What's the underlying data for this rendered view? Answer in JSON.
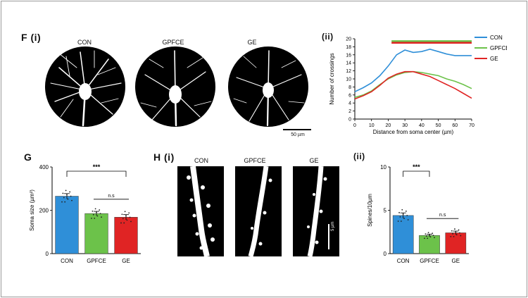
{
  "panels": {
    "F": {
      "label": "F",
      "sub_i": "(i)",
      "sub_ii": "(ii)"
    },
    "G": {
      "label": "G"
    },
    "H": {
      "label": "H",
      "sub_i": "(i)",
      "sub_ii": "(ii)"
    }
  },
  "neuron_labels": [
    "CON",
    "GPFCE",
    "GE"
  ],
  "scale_bar_f": "50 µm",
  "scale_bar_h": "5 µm",
  "colors": {
    "CON": "#2f8fd8",
    "GPFCE": "#6cc24a",
    "GE": "#e02424"
  },
  "chart_data": [
    {
      "id": "sholl",
      "type": "line",
      "xlabel": "Distance from soma center (µm)",
      "ylabel": "Number of crossings",
      "xlim": [
        0,
        70
      ],
      "ylim": [
        0,
        20
      ],
      "xticks": [
        0,
        10,
        20,
        30,
        40,
        50,
        60,
        70
      ],
      "yticks": [
        0,
        2,
        4,
        6,
        8,
        10,
        12,
        14,
        16,
        18,
        20
      ],
      "x": [
        0,
        5,
        10,
        15,
        20,
        25,
        30,
        35,
        40,
        45,
        50,
        55,
        60,
        65,
        70
      ],
      "series": [
        {
          "name": "CON",
          "color": "#2f8fd8",
          "values": [
            6.8,
            7.8,
            9.0,
            10.8,
            13.2,
            16.0,
            17.2,
            16.6,
            16.8,
            17.4,
            16.8,
            16.2,
            15.8,
            15.8,
            15.8
          ]
        },
        {
          "name": "GPFCE",
          "color": "#6cc24a",
          "values": [
            5.4,
            6.0,
            7.0,
            8.6,
            10.0,
            11.0,
            11.6,
            11.8,
            11.6,
            11.2,
            10.8,
            10.0,
            9.4,
            8.6,
            7.6
          ]
        },
        {
          "name": "GE",
          "color": "#e02424",
          "values": [
            5.0,
            5.8,
            6.8,
            8.4,
            10.2,
            11.2,
            11.8,
            11.8,
            11.2,
            10.6,
            9.6,
            8.6,
            7.6,
            6.4,
            5.2
          ]
        }
      ],
      "significance_bars": [
        {
          "color": "#6cc24a",
          "x": [
            22,
            70
          ],
          "y": 19.4
        },
        {
          "color": "#e02424",
          "x": [
            22,
            70
          ],
          "y": 19.0
        }
      ],
      "legend": [
        "CON",
        "GPFCE",
        "GE"
      ],
      "legend_position": "top-right"
    },
    {
      "id": "soma",
      "type": "bar",
      "ylabel": "Soma size (µm²)",
      "categories": [
        "CON",
        "GPFCE",
        "GE"
      ],
      "values": [
        265,
        185,
        168
      ],
      "errors": [
        12,
        10,
        12
      ],
      "ylim": [
        0,
        400
      ],
      "yticks": [
        0,
        200,
        400
      ],
      "colors": [
        "#2f8fd8",
        "#6cc24a",
        "#e02424"
      ],
      "significance": [
        {
          "from": "CON",
          "to": "GE",
          "text": "***"
        },
        {
          "from": "GPFCE",
          "to": "GE",
          "text": "n.s"
        }
      ]
    },
    {
      "id": "spines",
      "type": "bar",
      "ylabel": "Spines/10µm",
      "categories": [
        "CON",
        "GPFCE",
        "GE"
      ],
      "values": [
        4.4,
        2.1,
        2.4
      ],
      "errors": [
        0.3,
        0.15,
        0.2
      ],
      "ylim": [
        0,
        10
      ],
      "yticks": [
        0,
        5,
        10
      ],
      "colors": [
        "#2f8fd8",
        "#6cc24a",
        "#e02424"
      ],
      "significance": [
        {
          "from": "CON",
          "to": "GPFCE",
          "text": "***"
        },
        {
          "from": "GPFCE",
          "to": "GE",
          "text": "n.s"
        }
      ]
    }
  ]
}
